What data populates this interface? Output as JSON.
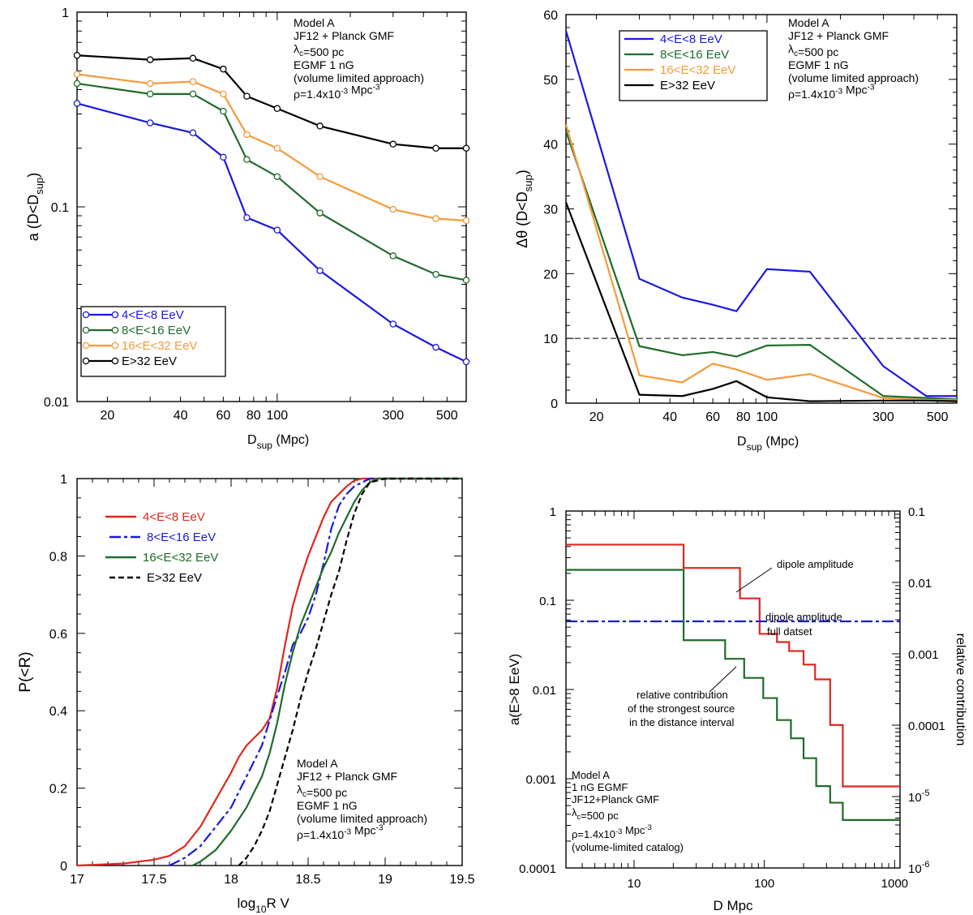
{
  "chart_data": [
    {
      "type": "line",
      "id": "a",
      "xscale": "log",
      "yscale": "log",
      "xlim": [
        15,
        600
      ],
      "ylim": [
        0.01,
        1
      ],
      "xlabel": "D",
      "xlabel_sub": "sup",
      "xlabel_unit": "(Mpc)",
      "ylabel": "a (D<D",
      "ylabel_sub": "sup",
      "ylabel_end": ")",
      "x_ticks": [
        20,
        40,
        60,
        80,
        100,
        300,
        500
      ],
      "x_tick_labels": [
        "20",
        "40",
        "60",
        "80",
        "100",
        "300",
        "500"
      ],
      "y_ticks": [
        0.01,
        0.1,
        1
      ],
      "y_tick_labels": [
        "0.01",
        "0.1",
        "1"
      ],
      "markers": true,
      "legend_position": "bottom-left",
      "annotation": [
        "Model A",
        "JF12 + Planck GMF",
        "λ_c=500 pc",
        "EGMF 1 nG",
        "(volume limited approach)",
        "ρ=1.4x10^-3 Mpc^-3"
      ],
      "x": [
        15,
        30,
        45,
        60,
        75,
        100,
        150,
        300,
        450,
        600
      ],
      "series": [
        {
          "name": "4<E<8 EeV",
          "color": "#1a1adb",
          "values": [
            0.34,
            0.27,
            0.24,
            0.18,
            0.088,
            0.076,
            0.047,
            0.025,
            0.019,
            0.016
          ]
        },
        {
          "name": "8<E<16 EeV",
          "color": "#1f6b2a",
          "values": [
            0.43,
            0.38,
            0.38,
            0.31,
            0.175,
            0.143,
            0.093,
            0.056,
            0.045,
            0.042
          ]
        },
        {
          "name": "16<E<32 EeV",
          "color": "#f59a3a",
          "values": [
            0.48,
            0.43,
            0.44,
            0.38,
            0.235,
            0.2,
            0.143,
            0.097,
            0.087,
            0.085
          ]
        },
        {
          "name": "E>32 EeV",
          "color": "#000000",
          "values": [
            0.6,
            0.57,
            0.58,
            0.51,
            0.37,
            0.32,
            0.26,
            0.21,
            0.2,
            0.2
          ]
        }
      ]
    },
    {
      "type": "line",
      "id": "b",
      "xscale": "log",
      "yscale": "linear",
      "xlim": [
        15,
        600
      ],
      "ylim": [
        0,
        60
      ],
      "xlabel": "D",
      "xlabel_sub": "sup",
      "xlabel_unit": "(Mpc)",
      "ylabel": "Δθ (D<D",
      "ylabel_sub": "sup",
      "ylabel_end": ")",
      "x_ticks": [
        20,
        40,
        60,
        80,
        100,
        300,
        500
      ],
      "x_tick_labels": [
        "20",
        "40",
        "60",
        "80",
        "100",
        "300",
        "500"
      ],
      "y_ticks": [
        0,
        10,
        20,
        30,
        40,
        50,
        60
      ],
      "y_tick_labels": [
        "0",
        "10",
        "20",
        "30",
        "40",
        "50",
        "60"
      ],
      "reference_line": 10,
      "markers": false,
      "legend_position": "top-left",
      "annotation": [
        "Model A",
        "JF12 + Planck GMF",
        "λ_c=500 pc",
        "EGMF 1 nG",
        "(volume limited approach)",
        "ρ=1.4x10^-3 Mpc^-3"
      ],
      "x": [
        15,
        30,
        45,
        60,
        75,
        100,
        150,
        300,
        450,
        600
      ],
      "series": [
        {
          "name": "4<E<8 EeV",
          "color": "#1a1adb",
          "values": [
            57.5,
            19.2,
            16.3,
            15.2,
            14.2,
            20.7,
            20.3,
            5.7,
            1.1,
            1.1
          ]
        },
        {
          "name": "8<E<16 EeV",
          "color": "#1f6b2a",
          "values": [
            42,
            8.8,
            7.4,
            7.9,
            7.2,
            8.9,
            9.0,
            1.1,
            0.8,
            0.6
          ]
        },
        {
          "name": "16<E<32 EeV",
          "color": "#f59a3a",
          "values": [
            43,
            4.3,
            3.2,
            6.1,
            5.2,
            3.6,
            4.5,
            0.8,
            0.5,
            0.5
          ]
        },
        {
          "name": "E>32 EeV",
          "color": "#000000",
          "values": [
            31,
            1.3,
            1.1,
            2.2,
            3.4,
            0.9,
            0.3,
            0.4,
            0.4,
            0.3
          ]
        }
      ]
    },
    {
      "type": "line",
      "id": "c",
      "xscale": "linear",
      "yscale": "linear",
      "xlim": [
        17,
        19.5
      ],
      "ylim": [
        0,
        1
      ],
      "xlabel": "log",
      "xlabel_sub": "10",
      "xlabel_unit": "R V",
      "ylabel": "P(<R)",
      "x_ticks": [
        17,
        17.5,
        18,
        18.5,
        19,
        19.5
      ],
      "x_tick_labels": [
        "17",
        "17.5",
        "18",
        "18.5",
        "19",
        "19.5"
      ],
      "y_ticks": [
        0,
        0.2,
        0.4,
        0.6,
        0.8,
        1
      ],
      "y_tick_labels": [
        "0",
        "0.2",
        "0.4",
        "0.6",
        "0.8",
        "1"
      ],
      "markers": false,
      "legend_position": "top-left",
      "annotation": [
        "Model A",
        "JF12 + Planck GMF",
        "λ_c=500 pc",
        "EGMF 1 nG",
        "(volume limited approach)",
        "ρ=1.4x10^-3 Mpc^-3"
      ],
      "series": [
        {
          "name": "4<E<8 EeV",
          "color": "#e0261f",
          "dash": "solid",
          "x": [
            17,
            17.3,
            17.5,
            17.6,
            17.7,
            17.8,
            17.9,
            18.0,
            18.05,
            18.1,
            18.15,
            18.2,
            18.25,
            18.3,
            18.35,
            18.4,
            18.45,
            18.5,
            18.55,
            18.6,
            18.65,
            18.7,
            18.75,
            18.8,
            18.85,
            18.9,
            19.0,
            19.5
          ],
          "y": [
            0,
            0.005,
            0.015,
            0.025,
            0.05,
            0.1,
            0.17,
            0.24,
            0.28,
            0.31,
            0.33,
            0.35,
            0.38,
            0.46,
            0.57,
            0.67,
            0.74,
            0.8,
            0.85,
            0.9,
            0.94,
            0.96,
            0.98,
            0.995,
            1,
            1,
            1,
            1
          ]
        },
        {
          "name": "8<E<16 EeV",
          "color": "#1a1adb",
          "dash": "dashdot",
          "x": [
            17.6,
            17.7,
            17.8,
            17.9,
            18.0,
            18.1,
            18.2,
            18.3,
            18.35,
            18.4,
            18.45,
            18.5,
            18.55,
            18.6,
            18.65,
            18.7,
            18.75,
            18.8,
            18.85,
            18.9,
            19.0,
            19.5
          ],
          "y": [
            0,
            0.02,
            0.05,
            0.1,
            0.15,
            0.23,
            0.31,
            0.44,
            0.5,
            0.57,
            0.6,
            0.64,
            0.7,
            0.78,
            0.87,
            0.93,
            0.96,
            0.98,
            0.99,
            1,
            1,
            1
          ]
        },
        {
          "name": "16<E<32 EeV",
          "color": "#1f6b2a",
          "dash": "solid",
          "x": [
            17.75,
            17.8,
            17.9,
            18.0,
            18.1,
            18.2,
            18.25,
            18.3,
            18.35,
            18.4,
            18.45,
            18.5,
            18.55,
            18.6,
            18.65,
            18.7,
            18.75,
            18.8,
            18.85,
            18.9,
            18.95,
            19.0,
            19.5
          ],
          "y": [
            0,
            0.01,
            0.04,
            0.09,
            0.15,
            0.23,
            0.29,
            0.37,
            0.47,
            0.55,
            0.62,
            0.67,
            0.72,
            0.77,
            0.81,
            0.86,
            0.9,
            0.94,
            0.97,
            0.99,
            1,
            1,
            1
          ]
        },
        {
          "name": "E>32 EeV",
          "color": "#000000",
          "dash": "dashed",
          "x": [
            18.05,
            18.1,
            18.15,
            18.2,
            18.25,
            18.3,
            18.35,
            18.4,
            18.45,
            18.5,
            18.55,
            18.6,
            18.65,
            18.7,
            18.75,
            18.8,
            18.85,
            18.9,
            19.0,
            19.5
          ],
          "y": [
            0,
            0.02,
            0.05,
            0.09,
            0.14,
            0.21,
            0.28,
            0.35,
            0.43,
            0.5,
            0.56,
            0.63,
            0.7,
            0.76,
            0.84,
            0.91,
            0.96,
            0.99,
            1,
            1
          ]
        }
      ]
    },
    {
      "type": "line",
      "id": "d",
      "step": true,
      "xscale": "log",
      "yscale": "log",
      "xlim": [
        3,
        1100
      ],
      "ylim": [
        0.0001,
        1
      ],
      "y2lim": [
        1e-06,
        0.1
      ],
      "xlabel": "D Mpc",
      "ylabel": "a(E>8 EeV)",
      "y2label": "relative contribution",
      "x_ticks": [
        10,
        100,
        1000
      ],
      "x_tick_labels": [
        "10",
        "100",
        "1000"
      ],
      "y_ticks": [
        0.0001,
        0.001,
        0.01,
        0.1,
        1
      ],
      "y_tick_labels": [
        "0.0001",
        "0.001",
        "0.01",
        "0.1",
        "1"
      ],
      "y2_ticks": [
        1e-06,
        1e-05,
        0.0001,
        0.001,
        0.01,
        0.1
      ],
      "y2_tick_labels": [
        [
          "10",
          "-6"
        ],
        [
          "10",
          "-5"
        ],
        "0.0001",
        "0.001",
        "0.01",
        "0.1"
      ],
      "annotation": [
        "Model A",
        "1 nG  EGMF",
        "JF12+Planck GMF",
        "λ_c=500 pc",
        "ρ=1.4x10^-3  Mpc^-3",
        "(volume-limited catalog)"
      ],
      "callouts": [
        {
          "text": [
            "dipole amplitude"
          ]
        },
        {
          "text": [
            "dipole amplitude",
            "full datset"
          ]
        },
        {
          "text": [
            "relative contribution",
            "of the strongest source",
            "in the distance interval"
          ]
        }
      ],
      "series": [
        {
          "name": "dipole amplitude",
          "color": "#e0261f",
          "axis": "left",
          "x": [
            3,
            24,
            24,
            65,
            65,
            92,
            92,
            125,
            125,
            155,
            155,
            200,
            200,
            245,
            245,
            320,
            320,
            400,
            400,
            1100
          ],
          "y": [
            0.42,
            0.42,
            0.23,
            0.23,
            0.105,
            0.105,
            0.042,
            0.042,
            0.034,
            0.034,
            0.027,
            0.027,
            0.019,
            0.019,
            0.013,
            0.013,
            0.004,
            0.004,
            0.00082,
            0.00082
          ]
        },
        {
          "name": "dipole amplitude full datset",
          "color": "#1a1adb",
          "axis": "left",
          "dash": "dashdot",
          "x": [
            3,
            1100
          ],
          "y": [
            0.058,
            0.058
          ]
        },
        {
          "name": "relative contribution of the strongest source in the distance interval",
          "color": "#1f6b2a",
          "axis": "right",
          "x": [
            3,
            24,
            24,
            50,
            50,
            70,
            70,
            98,
            98,
            125,
            125,
            160,
            160,
            200,
            200,
            250,
            250,
            320,
            320,
            400,
            400,
            1100
          ],
          "y": [
            0.015,
            0.015,
            0.00155,
            0.00155,
            0.00085,
            0.00085,
            0.00046,
            0.00046,
            0.00024,
            0.00024,
            0.000118,
            0.000118,
            6.55e-05,
            6.55e-05,
            3.45e-05,
            3.45e-05,
            1.4e-05,
            1.4e-05,
            8.2e-06,
            8.2e-06,
            4.7e-06,
            4.7e-06
          ]
        }
      ]
    }
  ]
}
